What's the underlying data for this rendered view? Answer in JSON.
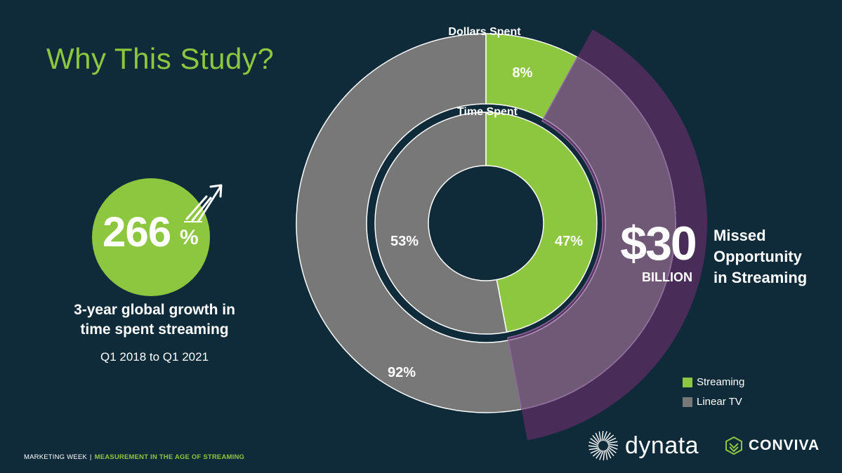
{
  "title": "Why This Study?",
  "growth": {
    "value": "266",
    "unit": "%",
    "description_line1": "3-year global growth in",
    "description_line2": "time spent streaming",
    "date_range": "Q1 2018 to Q1 2021"
  },
  "chart_data": {
    "type": "pie",
    "subtype": "nested-donut",
    "series": [
      {
        "name": "Dollars Spent",
        "categories": [
          "Streaming",
          "Linear TV"
        ],
        "values": [
          8,
          92
        ],
        "labels": [
          "8%",
          "92%"
        ]
      },
      {
        "name": "Time Spent",
        "categories": [
          "Streaming",
          "Linear TV"
        ],
        "values": [
          47,
          53
        ],
        "labels": [
          "47%",
          "53%"
        ]
      }
    ],
    "legend": [
      {
        "label": "Streaming",
        "color": "#8dc63f"
      },
      {
        "label": "Linear TV",
        "color": "#777877"
      }
    ],
    "annotation": {
      "value": "$30",
      "unit": "BILLION",
      "text_line1": "Missed",
      "text_line2": "Opportunity",
      "text_line3": "in Streaming"
    }
  },
  "colors": {
    "background": "#0f2b3a",
    "accent": "#8dc63f",
    "linear": "#777877",
    "opportunity": "#4d2c5a"
  },
  "footer": {
    "left": "MARKETING WEEK",
    "separator": "|",
    "right": "MEASUREMENT IN THE AGE OF STREAMING"
  },
  "logos": {
    "dynata": "dynata",
    "conviva": "CONVIVA"
  }
}
